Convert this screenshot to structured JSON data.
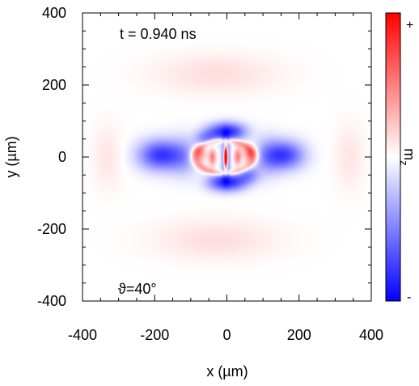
{
  "chart_data": {
    "type": "heatmap",
    "quantity": "m_z",
    "xlabel": "x (µm)",
    "ylabel": "y (µm)",
    "xlim": [
      -400,
      400
    ],
    "ylim": [
      -400,
      400
    ],
    "xticks": [
      -400,
      -200,
      0,
      200,
      400
    ],
    "yticks": [
      -400,
      -200,
      0,
      200,
      400
    ],
    "annotations": {
      "time": "t = 0.940 ns",
      "angle": "ϑ=40°"
    },
    "colorbar": {
      "label": "m",
      "label_sub": "z",
      "max_label": "+",
      "min_label": "-",
      "colors": {
        "max": "#ff0000",
        "mid": "#ffffff",
        "min": "#0000ff"
      }
    },
    "grid": false,
    "field_features": [
      {
        "kind": "lobe",
        "x": -185,
        "y": 5,
        "sx": 60,
        "sy": 42,
        "amp": -0.78
      },
      {
        "kind": "lobe",
        "x": 160,
        "y": 5,
        "sx": 55,
        "sy": 40,
        "amp": -0.72
      },
      {
        "kind": "lobe",
        "x": -120,
        "y": 0,
        "sx": 40,
        "sy": 55,
        "amp": -0.3
      },
      {
        "kind": "lobe",
        "x": 110,
        "y": 0,
        "sx": 40,
        "sy": 55,
        "amp": -0.3
      },
      {
        "kind": "lobe",
        "x": -20,
        "y": 70,
        "sx": 40,
        "sy": 25,
        "amp": -0.55
      },
      {
        "kind": "lobe",
        "x": 20,
        "y": 70,
        "sx": 40,
        "sy": 25,
        "amp": -0.55
      },
      {
        "kind": "lobe",
        "x": -20,
        "y": -70,
        "sx": 40,
        "sy": 25,
        "amp": -0.55
      },
      {
        "kind": "lobe",
        "x": 20,
        "y": -70,
        "sx": 40,
        "sy": 25,
        "amp": -0.55
      },
      {
        "kind": "lobe",
        "x": -60,
        "y": 50,
        "sx": 30,
        "sy": 25,
        "amp": -0.4
      },
      {
        "kind": "lobe",
        "x": 60,
        "y": -50,
        "sx": 30,
        "sy": 25,
        "amp": -0.4
      },
      {
        "kind": "core",
        "x": -3,
        "y": 0,
        "sx": 10,
        "sy": 50,
        "amp": -1.0
      },
      {
        "kind": "core",
        "x": -3,
        "y": 0,
        "sx": 5,
        "sy": 32,
        "amp": 2.6
      },
      {
        "kind": "ring",
        "x": -8,
        "y": 0,
        "sx": 80,
        "sy": 45,
        "amp": 0.45
      },
      {
        "kind": "lobe",
        "x": -75,
        "y": 10,
        "sx": 20,
        "sy": 22,
        "amp": 0.45
      },
      {
        "kind": "lobe",
        "x": 65,
        "y": 10,
        "sx": 20,
        "sy": 22,
        "amp": 0.45
      },
      {
        "kind": "lobe",
        "x": -40,
        "y": 0,
        "sx": 10,
        "sy": 25,
        "amp": 0.5
      },
      {
        "kind": "lobe",
        "x": 30,
        "y": 0,
        "sx": 10,
        "sy": 25,
        "amp": 0.5
      },
      {
        "kind": "lobe",
        "x": -30,
        "y": 230,
        "sx": 170,
        "sy": 55,
        "amp": 0.13
      },
      {
        "kind": "lobe",
        "x": -30,
        "y": -230,
        "sx": 170,
        "sy": 55,
        "amp": 0.13
      },
      {
        "kind": "lobe",
        "x": -330,
        "y": 0,
        "sx": 40,
        "sy": 90,
        "amp": 0.1
      },
      {
        "kind": "lobe",
        "x": 340,
        "y": 0,
        "sx": 40,
        "sy": 90,
        "amp": 0.1
      }
    ]
  }
}
